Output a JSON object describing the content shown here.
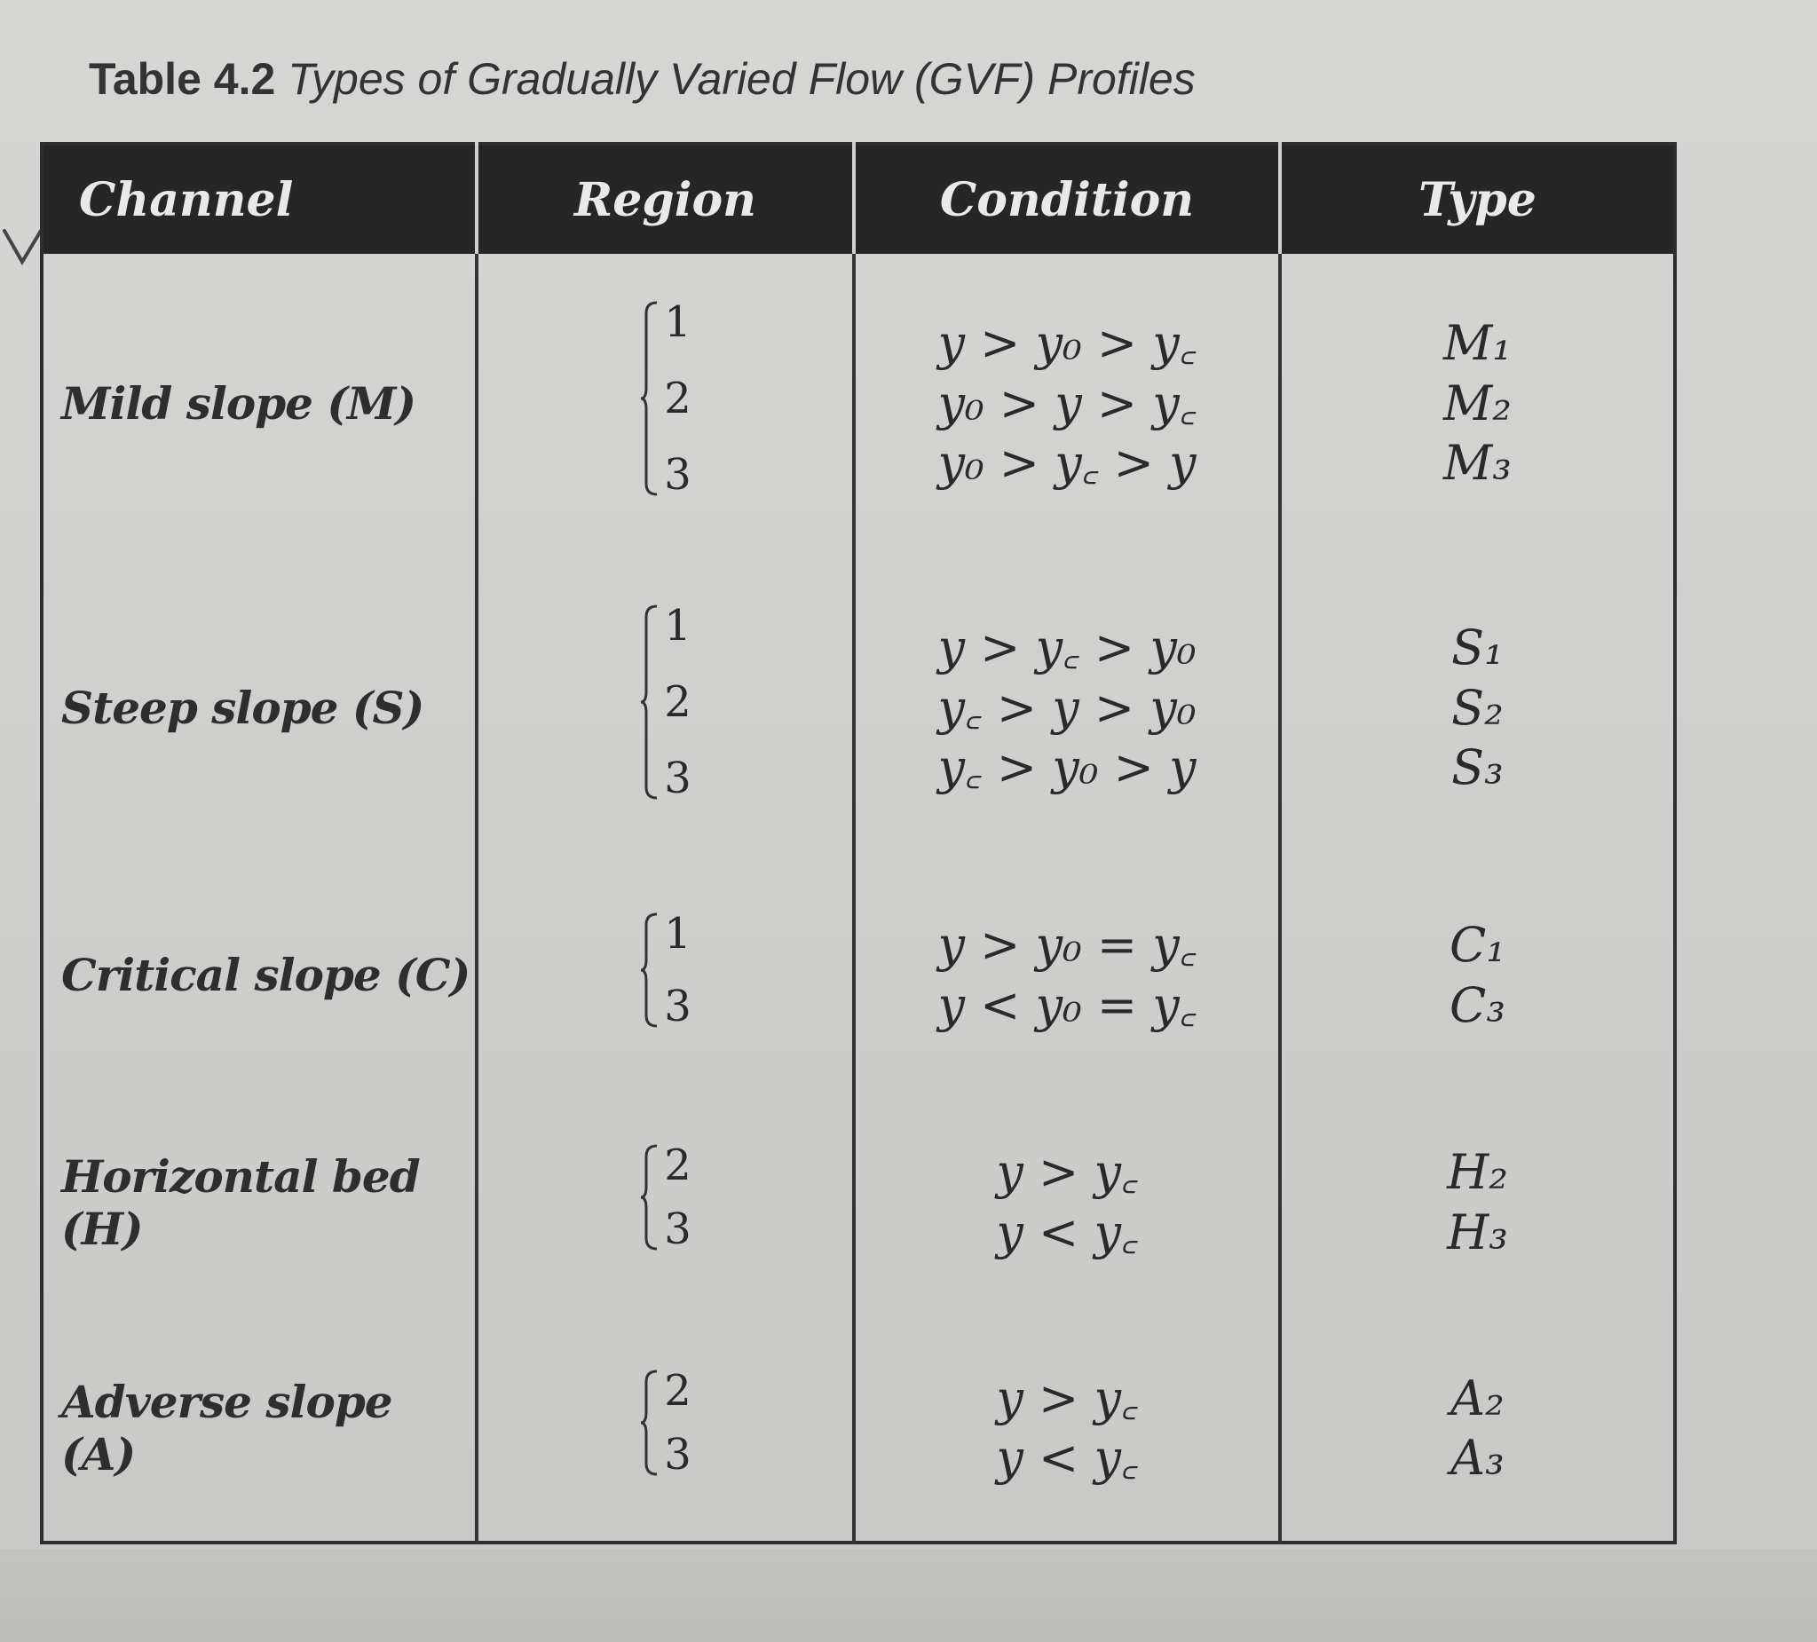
{
  "caption": {
    "number": "Table 4.2",
    "title": "Types of Gradually Varied Flow (GVF) Profiles"
  },
  "headers": [
    "Channel",
    "Region",
    "Condition",
    "Type"
  ],
  "rows": [
    {
      "channel": "Mild slope (M)",
      "regions": [
        "1",
        "2",
        "3"
      ],
      "conditions": [
        "y > y₀ > y꜀",
        "y₀ > y > y꜀",
        "y₀ > y꜀ > y"
      ],
      "types": [
        "M₁",
        "M₂",
        "M₃"
      ]
    },
    {
      "channel": "Steep slope (S)",
      "regions": [
        "1",
        "2",
        "3"
      ],
      "conditions": [
        "y > y꜀ > y₀",
        "y꜀ > y > y₀",
        "y꜀ > y₀ > y"
      ],
      "types": [
        "S₁",
        "S₂",
        "S₃"
      ]
    },
    {
      "channel": "Critical slope (C)",
      "regions": [
        "1",
        "3"
      ],
      "conditions": [
        "y > y₀ = y꜀",
        "y < y₀ = y꜀"
      ],
      "types": [
        "C₁",
        "C₃"
      ]
    },
    {
      "channel": "Horizontal bed (H)",
      "regions": [
        "2",
        "3"
      ],
      "conditions": [
        "y > y꜀",
        "y < y꜀"
      ],
      "types": [
        "H₂",
        "H₃"
      ]
    },
    {
      "channel": "Adverse slope (A)",
      "regions": [
        "2",
        "3"
      ],
      "conditions": [
        "y > y꜀",
        "y < y꜀"
      ],
      "types": [
        "A₂",
        "A₃"
      ]
    }
  ]
}
